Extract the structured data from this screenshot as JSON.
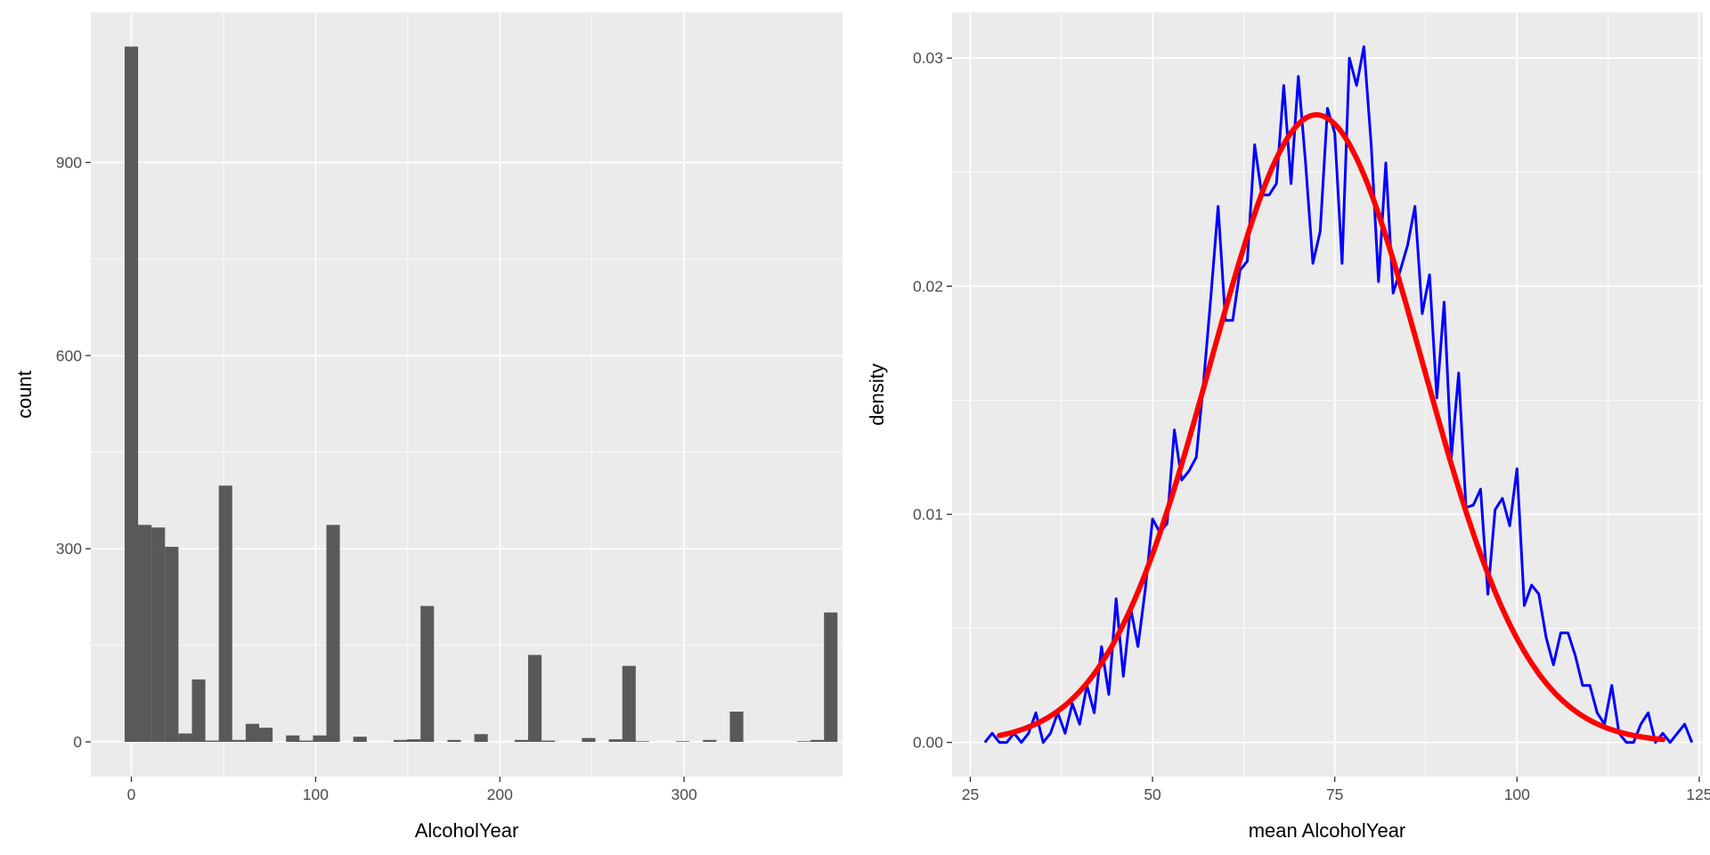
{
  "colors": {
    "panel_bg": "#EBEBEB",
    "grid_major": "#FFFFFF",
    "bar_fill": "#595959",
    "tick_color": "#333333",
    "empirical_line": "#0000FF",
    "normal_curve": "#FF0000"
  },
  "chart_data": [
    {
      "type": "bar",
      "chart_kind": "histogram",
      "xlabel": "AlcoholYear",
      "ylabel": "count",
      "xlim": [
        -22,
        386
      ],
      "ylim": [
        -54,
        1133
      ],
      "x_ticks": [
        0,
        100,
        200,
        300
      ],
      "x_tick_labels": [
        "0",
        "100",
        "200",
        "300"
      ],
      "y_ticks": [
        0,
        300,
        600,
        900
      ],
      "y_tick_labels": [
        "0",
        "300",
        "600",
        "900"
      ],
      "grid": true,
      "bin_width": 7.3,
      "bin_start": -3.65,
      "counts": [
        1080,
        337,
        333,
        303,
        13,
        97,
        2,
        398,
        3,
        28,
        22,
        0,
        10,
        2,
        10,
        337,
        0,
        8,
        0,
        0,
        3,
        4,
        211,
        0,
        3,
        0,
        12,
        0,
        0,
        3,
        135,
        2,
        0,
        0,
        6,
        0,
        4,
        118,
        1,
        0,
        0,
        1,
        0,
        3,
        0,
        47,
        0,
        0,
        0,
        0,
        1,
        3,
        201
      ]
    },
    {
      "type": "line",
      "xlabel": "mean AlcoholYear",
      "ylabel": "density",
      "xlim": [
        22.5,
        125.5
      ],
      "ylim": [
        -0.0015,
        0.032
      ],
      "x_ticks": [
        25,
        50,
        75,
        100,
        125
      ],
      "x_tick_labels": [
        "25",
        "50",
        "75",
        "100",
        "125"
      ],
      "y_ticks": [
        0.0,
        0.01,
        0.02,
        0.03
      ],
      "y_tick_labels": [
        "0.00",
        "0.01",
        "0.02",
        "0.03"
      ],
      "grid": true,
      "series": [
        {
          "role": "empirical density",
          "color": "#0000FF",
          "points": [
            [
              27,
              0.0
            ],
            [
              28,
              0.0004
            ],
            [
              29,
              0.0
            ],
            [
              30,
              0.0
            ],
            [
              31,
              0.0004
            ],
            [
              32,
              0.0
            ],
            [
              33,
              0.0004
            ],
            [
              34,
              0.0013
            ],
            [
              35,
              0.0
            ],
            [
              36,
              0.0004
            ],
            [
              37,
              0.0013
            ],
            [
              38,
              0.0004
            ],
            [
              39,
              0.0017
            ],
            [
              40,
              0.0008
            ],
            [
              41,
              0.0025
            ],
            [
              42,
              0.0013
            ],
            [
              43,
              0.0042
            ],
            [
              44,
              0.0021
            ],
            [
              45,
              0.0063
            ],
            [
              46,
              0.0029
            ],
            [
              47,
              0.0059
            ],
            [
              48,
              0.0042
            ],
            [
              49,
              0.0067
            ],
            [
              50,
              0.0098
            ],
            [
              51,
              0.0092
            ],
            [
              52,
              0.0096
            ],
            [
              53,
              0.0137
            ],
            [
              54,
              0.0115
            ],
            [
              55,
              0.0119
            ],
            [
              56,
              0.0125
            ],
            [
              57,
              0.0158
            ],
            [
              58,
              0.0195
            ],
            [
              59,
              0.0235
            ],
            [
              60,
              0.0185
            ],
            [
              61,
              0.0185
            ],
            [
              62,
              0.0207
            ],
            [
              63,
              0.0211
            ],
            [
              64,
              0.0262
            ],
            [
              65,
              0.024
            ],
            [
              66,
              0.024
            ],
            [
              67,
              0.0245
            ],
            [
              68,
              0.0288
            ],
            [
              69,
              0.0245
            ],
            [
              70,
              0.0292
            ],
            [
              71,
              0.0254
            ],
            [
              72,
              0.021
            ],
            [
              73,
              0.0224
            ],
            [
              74,
              0.0278
            ],
            [
              75,
              0.0267
            ],
            [
              76,
              0.021
            ],
            [
              77,
              0.03
            ],
            [
              78,
              0.0288
            ],
            [
              79,
              0.0305
            ],
            [
              80,
              0.0262
            ],
            [
              81,
              0.0202
            ],
            [
              82,
              0.0254
            ],
            [
              83,
              0.0197
            ],
            [
              84,
              0.0207
            ],
            [
              85,
              0.0218
            ],
            [
              86,
              0.0235
            ],
            [
              87,
              0.0188
            ],
            [
              88,
              0.0205
            ],
            [
              89,
              0.0151
            ],
            [
              90,
              0.0193
            ],
            [
              91,
              0.0125
            ],
            [
              92,
              0.0162
            ],
            [
              93,
              0.0103
            ],
            [
              94,
              0.0104
            ],
            [
              95,
              0.0111
            ],
            [
              96,
              0.0065
            ],
            [
              97,
              0.0102
            ],
            [
              98,
              0.0107
            ],
            [
              99,
              0.0095
            ],
            [
              100,
              0.012
            ],
            [
              101,
              0.006
            ],
            [
              102,
              0.0069
            ],
            [
              103,
              0.0065
            ],
            [
              104,
              0.0046
            ],
            [
              105,
              0.0034
            ],
            [
              106,
              0.0048
            ],
            [
              107,
              0.0048
            ],
            [
              108,
              0.0038
            ],
            [
              109,
              0.0025
            ],
            [
              110,
              0.0025
            ],
            [
              111,
              0.0013
            ],
            [
              112,
              0.0008
            ],
            [
              113,
              0.0025
            ],
            [
              114,
              0.0004
            ],
            [
              115,
              0.0
            ],
            [
              116,
              0.0
            ],
            [
              117,
              0.0008
            ],
            [
              118,
              0.0013
            ],
            [
              119,
              0.0
            ],
            [
              120,
              0.0004
            ],
            [
              121,
              0.0
            ],
            [
              122,
              0.0004
            ],
            [
              123,
              0.0008
            ],
            [
              124,
              0.0
            ]
          ]
        },
        {
          "role": "normal density curve",
          "color": "#FF0000",
          "mean": 72.5,
          "sd": 14.5,
          "x_range": [
            29,
            120
          ]
        }
      ]
    }
  ]
}
